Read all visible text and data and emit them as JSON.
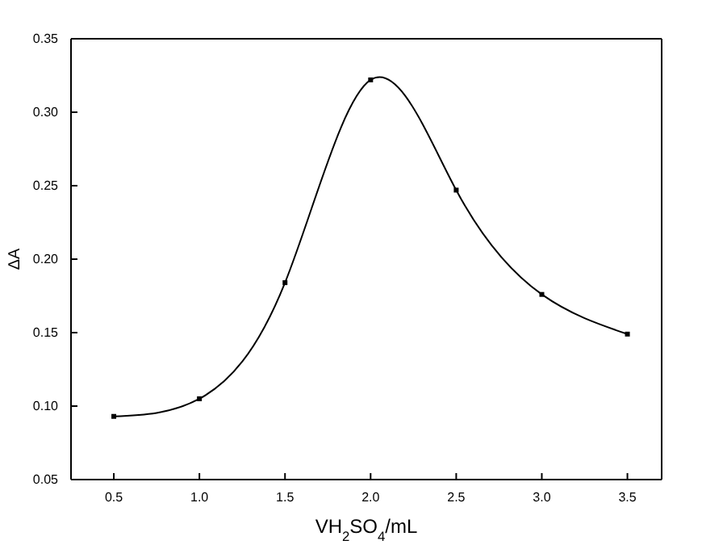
{
  "chart_data": {
    "type": "line",
    "xlabel": "VH$_{2}$SO$_{4}$/mL",
    "ylabel": "ΔA",
    "x": [
      0.5,
      1.0,
      1.5,
      2.0,
      2.5,
      3.0,
      3.5
    ],
    "series": [
      {
        "color": "#000000",
        "values": [
          0.093,
          0.105,
          0.184,
          0.322,
          0.247,
          0.176,
          0.149
        ]
      }
    ],
    "marker": "square",
    "line_style": "solid",
    "grid": false,
    "xlim": [
      0.25,
      3.7
    ],
    "ylim": [
      0.05,
      0.35
    ],
    "xticks": [
      {
        "value": 0.5,
        "label": "0.5"
      },
      {
        "value": 1,
        "label": "1.0"
      },
      {
        "value": 1.5,
        "label": "1.5"
      },
      {
        "value": 2,
        "label": "2.0"
      },
      {
        "value": 2.5,
        "label": "2.5"
      },
      {
        "value": 3,
        "label": "3.0"
      },
      {
        "value": 3.5,
        "label": "3.5"
      }
    ],
    "yticks": [
      {
        "value": 0.05,
        "label": "0.05"
      },
      {
        "value": 0.1,
        "label": "0.10"
      },
      {
        "value": 0.15,
        "label": "0.15"
      },
      {
        "value": 0.2,
        "label": "0.20"
      },
      {
        "value": 0.25,
        "label": "0.25"
      },
      {
        "value": 0.3,
        "label": "0.30"
      },
      {
        "value": 0.35,
        "label": "0.35"
      }
    ]
  }
}
